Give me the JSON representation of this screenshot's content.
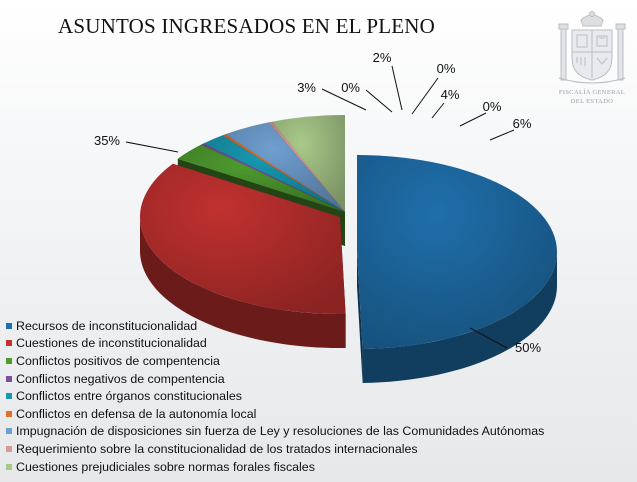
{
  "seal": {
    "line1": "FISCALÍA GENERAL",
    "line2": "DEL ESTADO"
  },
  "colors": {
    "recursos": "#1f6fab",
    "cuestiones": "#c0312f",
    "positivos": "#4e9a2f",
    "negativos": "#7a4fa0",
    "organos": "#1898b0",
    "autonomia": "#e0702a",
    "impugnacion": "#6f9fd0",
    "tratados": "#d99a96",
    "fiscales": "#a9c98a"
  },
  "chart_data": {
    "type": "pie",
    "title": "ASUNTOS INGRESADOS EN EL PLENO",
    "legend_position": "bottom-left",
    "slices": [
      {
        "name": "Recursos de inconstitucionalidad",
        "value": 50,
        "label": "50%",
        "exploded": true
      },
      {
        "name": "Cuestiones de inconstitucionalidad",
        "value": 35,
        "label": "35%",
        "exploded": true
      },
      {
        "name": "Conflictos positivos de compentencia",
        "value": 3,
        "label": "3%",
        "exploded": false
      },
      {
        "name": "Conflictos negativos de compentencia",
        "value": 0.3,
        "label": "0%",
        "exploded": false
      },
      {
        "name": "Conflictos entre órganos constitucionales",
        "value": 2,
        "label": "2%",
        "exploded": false
      },
      {
        "name": "Conflictos en defensa de la autonomía local",
        "value": 0.3,
        "label": "0%",
        "exploded": false
      },
      {
        "name": "Impugnación de disposiciones sin fuerza de Ley y resoluciones de las Comunidades Autónomas",
        "value": 4,
        "label": "4%",
        "exploded": false
      },
      {
        "name": "Requerimiento sobre la constitucionalidad de los tratados internacionales",
        "value": 0.3,
        "label": "0%",
        "exploded": false
      },
      {
        "name": "Cuestiones prejudiciales sobre normas forales fiscales",
        "value": 6,
        "label": "6%",
        "exploded": false
      }
    ]
  }
}
